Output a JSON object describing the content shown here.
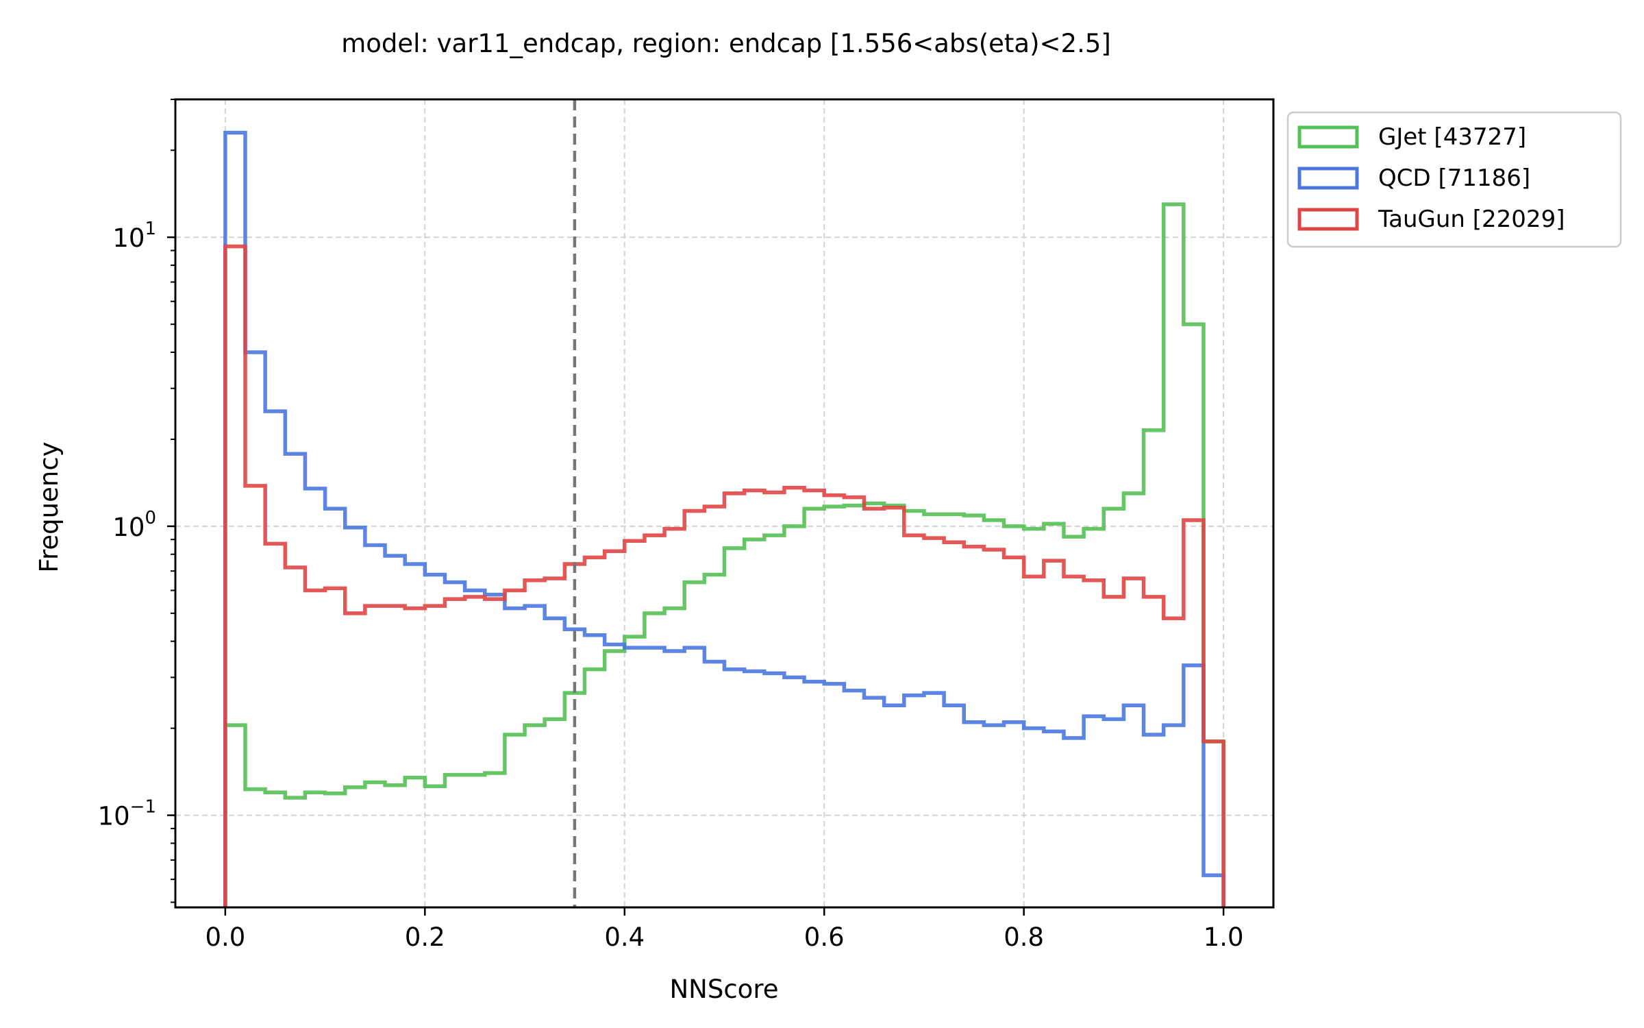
{
  "chart_data": {
    "type": "histogram-step",
    "title": "model: var11_endcap, region: endcap [1.556<abs(eta)<2.5]",
    "xlabel": "NNScore",
    "ylabel": "Frequency",
    "yscale": "log",
    "xlim": [
      -0.05,
      1.05
    ],
    "ylim": [
      0.048,
      30
    ],
    "x_ticks": [
      {
        "value": 0.0,
        "label": "0.0"
      },
      {
        "value": 0.2,
        "label": "0.2"
      },
      {
        "value": 0.4,
        "label": "0.4"
      },
      {
        "value": 0.6,
        "label": "0.6"
      },
      {
        "value": 0.8,
        "label": "0.8"
      },
      {
        "value": 1.0,
        "label": "1.0"
      }
    ],
    "y_ticks": [
      {
        "value": 0.1,
        "base": "10",
        "exp": "−1"
      },
      {
        "value": 1,
        "base": "10",
        "exp": "0"
      },
      {
        "value": 10,
        "base": "10",
        "exp": "1"
      }
    ],
    "grid": true,
    "legend_position": "outside-top-right",
    "cut_line": {
      "x": 0.35,
      "style": "dashed",
      "color": "#777777"
    },
    "bins": 50,
    "bin_range": [
      0.0,
      1.0
    ],
    "series": [
      {
        "name": "GJet [43727]",
        "color": "#55c055",
        "values": [
          0.205,
          0.123,
          0.12,
          0.115,
          0.12,
          0.119,
          0.125,
          0.13,
          0.127,
          0.135,
          0.126,
          0.138,
          0.138,
          0.14,
          0.19,
          0.205,
          0.215,
          0.265,
          0.32,
          0.37,
          0.415,
          0.5,
          0.52,
          0.64,
          0.68,
          0.84,
          0.9,
          0.93,
          1.0,
          1.15,
          1.17,
          1.18,
          1.2,
          1.18,
          1.13,
          1.1,
          1.1,
          1.09,
          1.05,
          1.0,
          0.98,
          1.02,
          0.92,
          0.98,
          1.15,
          1.3,
          2.15,
          13.0,
          5.0,
          0.18
        ]
      },
      {
        "name": "QCD [71186]",
        "color": "#4a77e0",
        "values": [
          23.0,
          4.0,
          2.5,
          1.78,
          1.35,
          1.15,
          0.99,
          0.86,
          0.79,
          0.74,
          0.68,
          0.64,
          0.6,
          0.58,
          0.52,
          0.53,
          0.48,
          0.44,
          0.42,
          0.39,
          0.38,
          0.38,
          0.37,
          0.38,
          0.34,
          0.32,
          0.315,
          0.31,
          0.3,
          0.29,
          0.285,
          0.27,
          0.255,
          0.24,
          0.26,
          0.265,
          0.24,
          0.21,
          0.205,
          0.21,
          0.2,
          0.195,
          0.185,
          0.22,
          0.215,
          0.24,
          0.19,
          0.205,
          0.33,
          0.062
        ]
      },
      {
        "name": "TauGun [22029]",
        "color": "#e04545",
        "values": [
          9.3,
          1.38,
          0.87,
          0.72,
          0.6,
          0.61,
          0.5,
          0.53,
          0.53,
          0.52,
          0.53,
          0.56,
          0.57,
          0.56,
          0.6,
          0.65,
          0.66,
          0.74,
          0.78,
          0.82,
          0.89,
          0.93,
          0.98,
          1.13,
          1.17,
          1.3,
          1.33,
          1.31,
          1.36,
          1.33,
          1.28,
          1.26,
          1.15,
          1.16,
          0.93,
          0.91,
          0.88,
          0.85,
          0.83,
          0.78,
          0.67,
          0.76,
          0.67,
          0.65,
          0.57,
          0.66,
          0.57,
          0.48,
          1.05,
          0.18
        ]
      }
    ]
  }
}
